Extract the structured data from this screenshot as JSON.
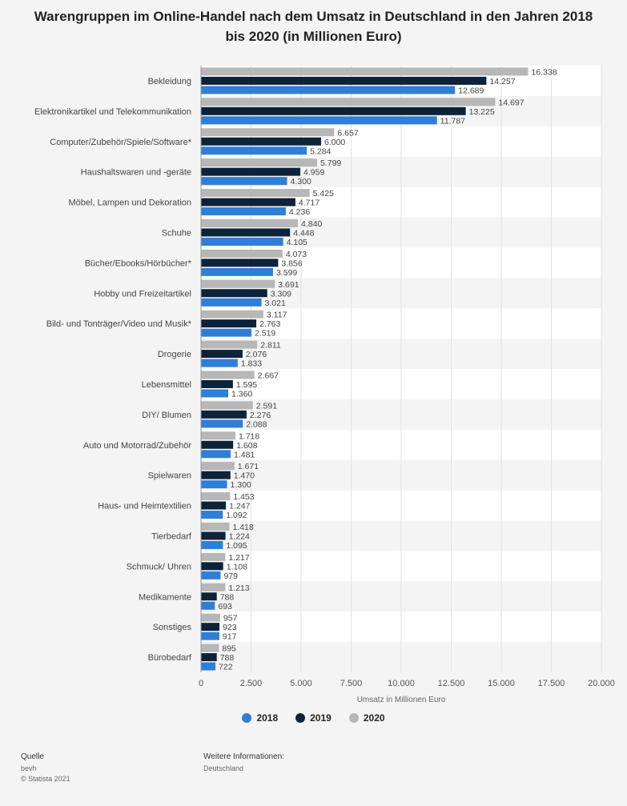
{
  "title": "Warengruppen im Online-Handel nach dem Umsatz in Deutschland in den Jahren 2018 bis 2020 (in Millionen Euro)",
  "colors": {
    "2018": "#2f7ed8",
    "2019": "#0d233a",
    "2020": "#b7b7b7"
  },
  "chart_data": {
    "type": "bar",
    "orientation": "horizontal",
    "title": "Warengruppen im Online-Handel nach dem Umsatz in Deutschland in den Jahren 2018 bis 2020 (in Millionen Euro)",
    "xlabel": "Umsatz in Millionen Euro",
    "xlim": [
      0,
      20000
    ],
    "xticks": [
      "0",
      "2.500",
      "5.000",
      "7.500",
      "10.000",
      "12.500",
      "15.000",
      "17.500",
      "20.000"
    ],
    "grid": true,
    "legend_position": "bottom",
    "categories": [
      "Bekleidung",
      "Elektronikartikel und Telekommunikation",
      "Computer/Zubehör/Spiele/Software*",
      "Haushaltswaren und -geräte",
      "Möbel, Lampen und Dekoration",
      "Schuhe",
      "Bücher/Ebooks/Hörbücher*",
      "Hobby und Freizeitartikel",
      "Bild- und Tonträger/Video und Musik*",
      "Drogerie",
      "Lebensmittel",
      "DIY/ Blumen",
      "Auto und Motorrad/Zubehör",
      "Spielwaren",
      "Haus- und Heimtextilien",
      "Tierbedarf",
      "Schmuck/ Uhren",
      "Medikamente",
      "Sonstiges",
      "Bürobedarf"
    ],
    "series": [
      {
        "name": "2020",
        "values": [
          16338,
          14697,
          6657,
          5799,
          5425,
          4840,
          4073,
          3691,
          3117,
          2811,
          2667,
          2591,
          1718,
          1671,
          1453,
          1418,
          1217,
          1213,
          957,
          895
        ],
        "labels": [
          "16.338",
          "14.697",
          "6.657",
          "5.799",
          "5.425",
          "4.840",
          "4.073",
          "3.691",
          "3.117",
          "2.811",
          "2.667",
          "2.591",
          "1.718",
          "1.671",
          "1.453",
          "1.418",
          "1.217",
          "1.213",
          "957",
          "895"
        ]
      },
      {
        "name": "2019",
        "values": [
          14257,
          13225,
          6000,
          4959,
          4717,
          4448,
          3856,
          3309,
          2763,
          2076,
          1595,
          2276,
          1608,
          1470,
          1247,
          1224,
          1108,
          788,
          923,
          788
        ],
        "labels": [
          "14.257",
          "13.225",
          "6.000",
          "4.959",
          "4.717",
          "4.448",
          "3.856",
          "3.309",
          "2.763",
          "2.076",
          "1.595",
          "2.276",
          "1.608",
          "1.470",
          "1.247",
          "1.224",
          "1.108",
          "788",
          "923",
          "788"
        ]
      },
      {
        "name": "2018",
        "values": [
          12689,
          11787,
          5284,
          4300,
          4236,
          4105,
          3599,
          3021,
          2519,
          1833,
          1360,
          2088,
          1481,
          1300,
          1092,
          1095,
          979,
          693,
          917,
          722
        ],
        "labels": [
          "12.689",
          "11.787",
          "5.284",
          "4.300",
          "4.236",
          "4.105",
          "3.599",
          "3.021",
          "2.519",
          "1.833",
          "1.360",
          "2.088",
          "1.481",
          "1.300",
          "1.092",
          "1.095",
          "979",
          "693",
          "917",
          "722"
        ]
      }
    ]
  },
  "legend": [
    "2018",
    "2019",
    "2020"
  ],
  "footer": {
    "source_label": "Quelle",
    "source_lines": [
      "bevh",
      "© Statista 2021"
    ],
    "info_label": "Weitere Informationen:",
    "info_text": "Deutschland"
  }
}
